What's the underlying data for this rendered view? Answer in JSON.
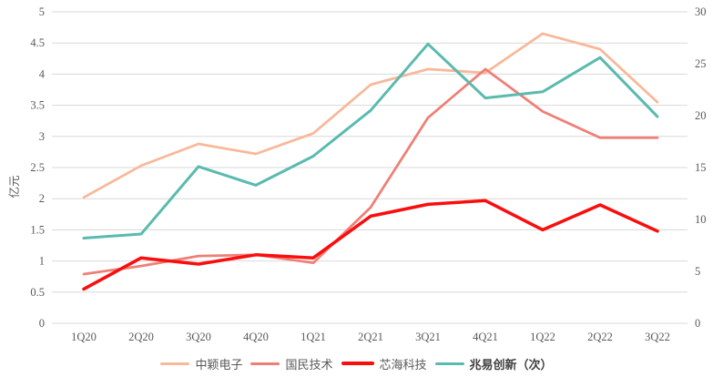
{
  "chart_data": {
    "type": "line",
    "title": "",
    "ylabel_left": "亿元",
    "categories": [
      "1Q20",
      "2Q20",
      "3Q20",
      "4Q20",
      "1Q21",
      "2Q21",
      "3Q21",
      "4Q21",
      "1Q22",
      "2Q22",
      "3Q22"
    ],
    "series": [
      {
        "name": "中颖电子",
        "axis": "left",
        "color": "#F8B899",
        "line_width": 2.75,
        "bold_legend": false,
        "values": [
          2.02,
          2.53,
          2.88,
          2.72,
          3.05,
          3.83,
          4.08,
          4.02,
          4.65,
          4.4,
          3.55
        ]
      },
      {
        "name": "国民技术",
        "axis": "left",
        "color": "#EF7F76",
        "line_width": 2.75,
        "bold_legend": false,
        "values": [
          0.79,
          0.92,
          1.08,
          1.1,
          0.97,
          1.86,
          3.3,
          4.08,
          3.4,
          2.98,
          2.98
        ]
      },
      {
        "name": "芯海科技",
        "axis": "left",
        "color": "#FA0D0D",
        "line_width": 3.5,
        "bold_legend": false,
        "values": [
          0.55,
          1.05,
          0.95,
          1.1,
          1.05,
          1.72,
          1.91,
          1.97,
          1.5,
          1.9,
          1.48
        ]
      },
      {
        "name": "兆易创新（次）",
        "axis": "right",
        "color": "#5ABAAE",
        "line_width": 3,
        "bold_legend": true,
        "values": [
          8.2,
          8.6,
          15.1,
          13.3,
          16.1,
          20.5,
          26.9,
          21.7,
          22.3,
          25.6,
          19.9
        ]
      }
    ],
    "left_axis": {
      "min": 0,
      "max": 5,
      "step": 0.5,
      "tick_labels": [
        "0",
        "0.5",
        "1",
        "1.5",
        "2",
        "2.5",
        "3",
        "3.5",
        "4",
        "4.5",
        "5"
      ]
    },
    "right_axis": {
      "min": 0,
      "max": 30,
      "step": 5,
      "tick_labels": [
        "0",
        "5",
        "10",
        "15",
        "20",
        "25",
        "30"
      ]
    },
    "grid": true,
    "legend_position": "bottom"
  },
  "colors": {
    "background": "#FFFFFF",
    "gridline": "#D9D9D9",
    "tick_text": "#595959",
    "legend_text": "#595959",
    "legend_text_bold": "#3F3F3F"
  }
}
